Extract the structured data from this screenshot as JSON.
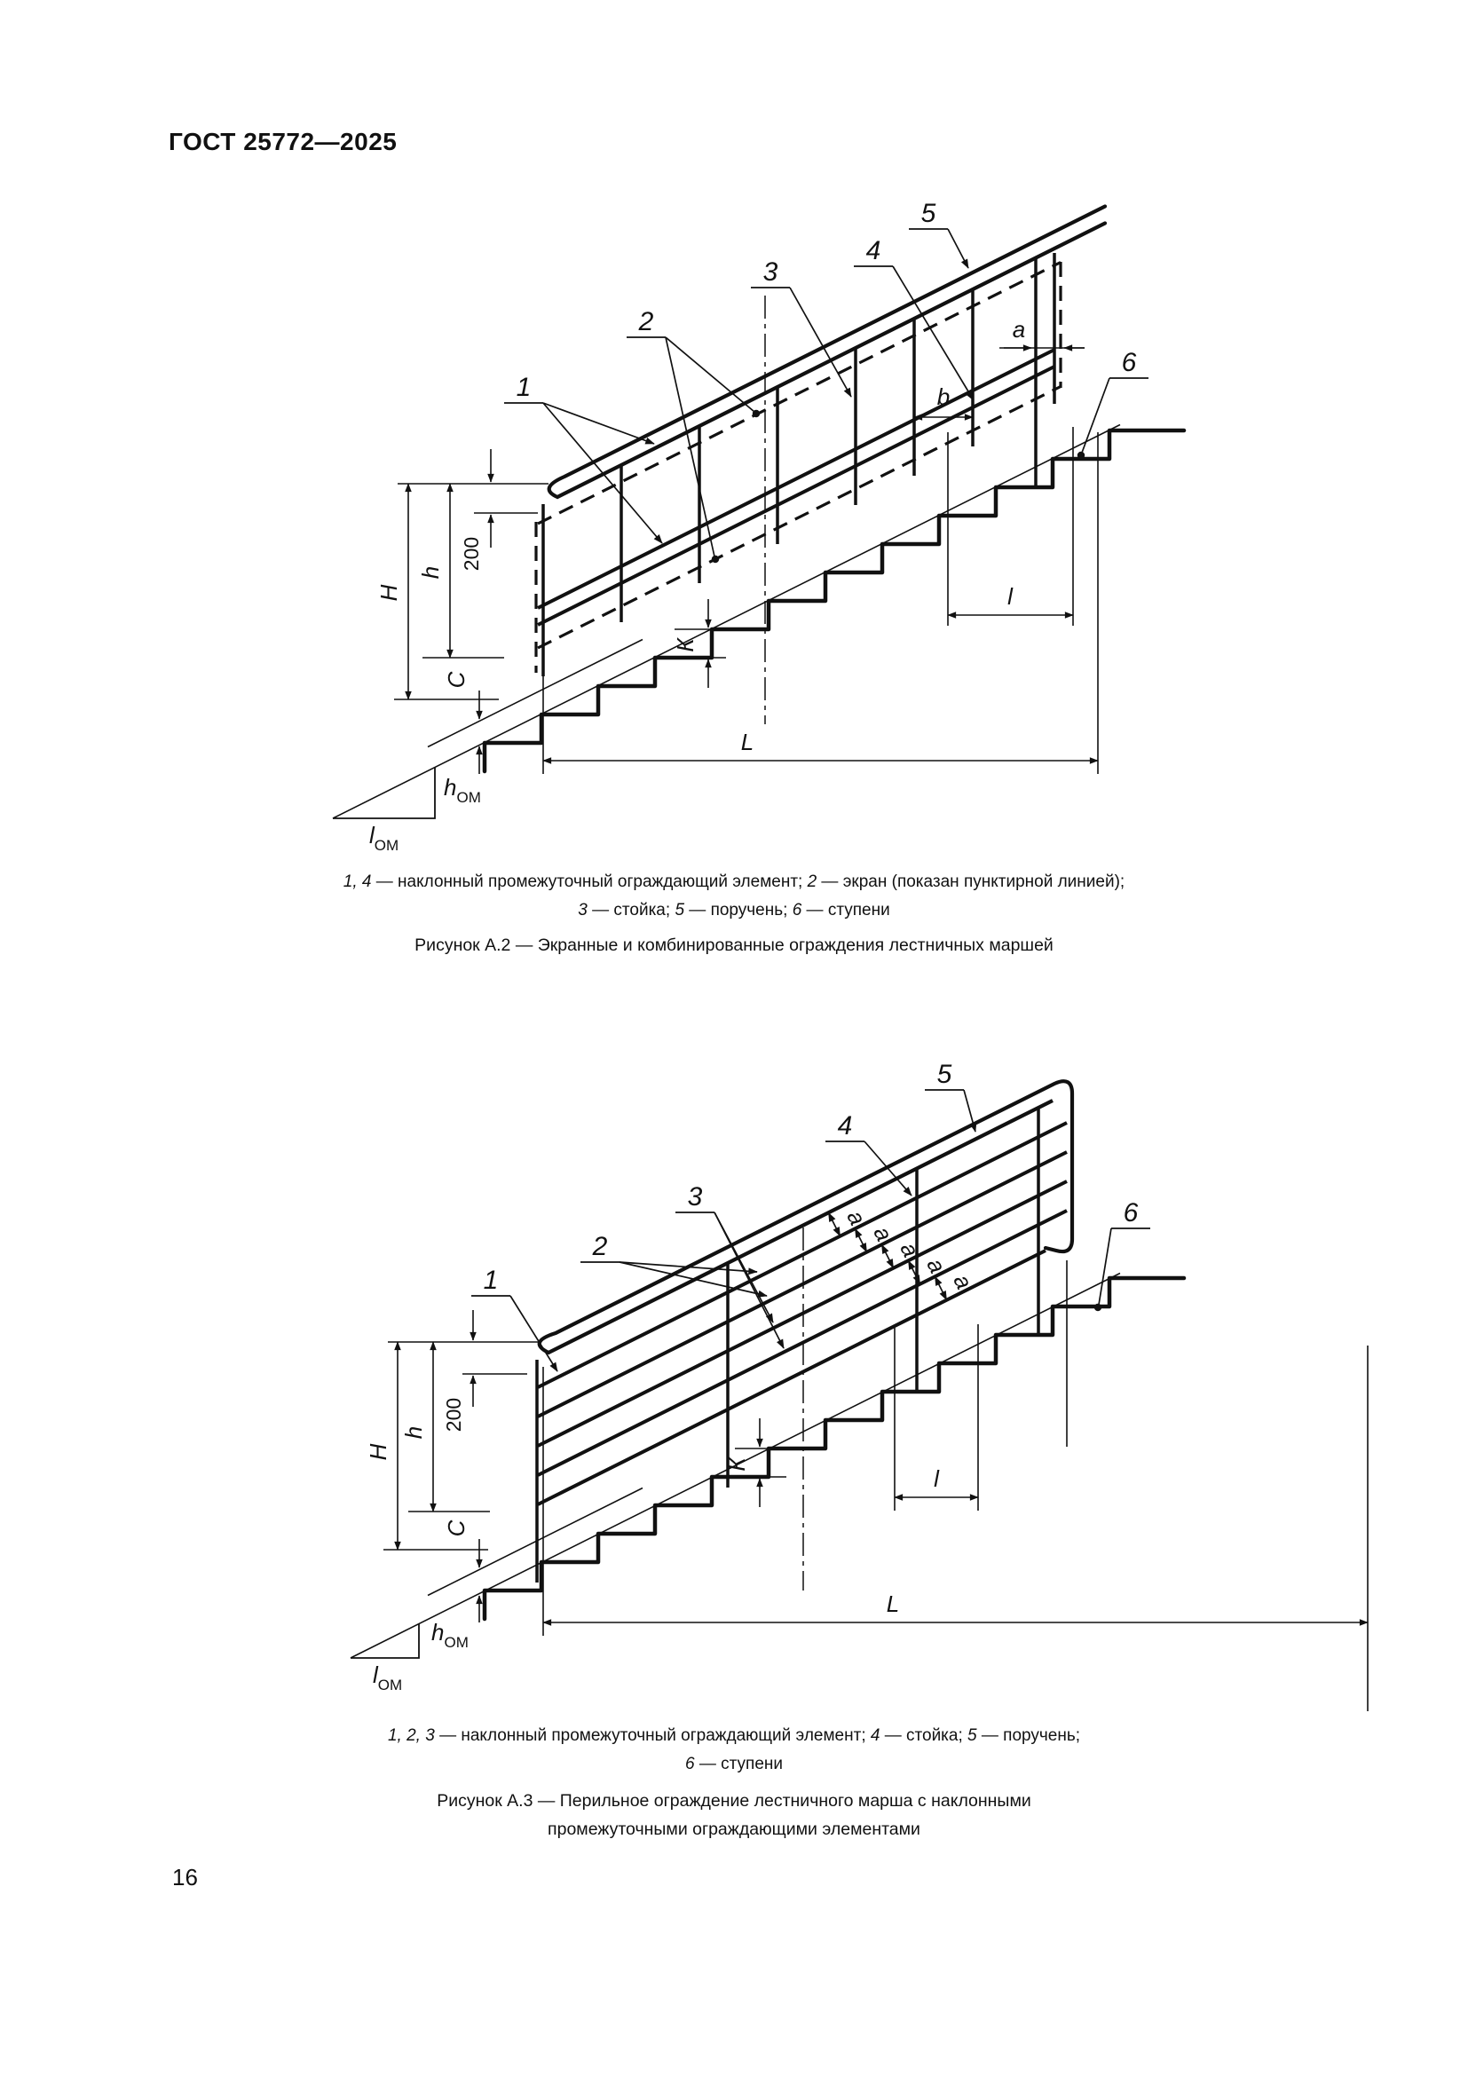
{
  "page": {
    "header": "ГОСТ 25772—2025",
    "page_number": "16"
  },
  "fig_a2": {
    "callouts": [
      "1",
      "2",
      "3",
      "4",
      "5",
      "6"
    ],
    "dims": {
      "H": "H",
      "h": "h",
      "two_hundred": "200",
      "C": "С",
      "K": "К",
      "l": "l",
      "L": "L",
      "a": "a",
      "b": "b",
      "h_om_main": "h",
      "l_om_main": "l",
      "om_sub": "ОМ"
    },
    "caption_line1": [
      {
        "t": "1, 4",
        "i": true
      },
      {
        "t": " — наклонный промежуточный ограждающий элемент; ",
        "i": false
      },
      {
        "t": "2",
        "i": true
      },
      {
        "t": " — экран (показан пунктирной линией);",
        "i": false
      }
    ],
    "caption_line2": [
      {
        "t": "3",
        "i": true
      },
      {
        "t": " — стойка; ",
        "i": false
      },
      {
        "t": "5",
        "i": true
      },
      {
        "t": " — поручень; ",
        "i": false
      },
      {
        "t": "6",
        "i": true
      },
      {
        "t": " — ступени",
        "i": false
      }
    ],
    "title": "Рисунок А.2 — Экранные и комбинированные ограждения лестничных маршей"
  },
  "fig_a3": {
    "callouts": [
      "1",
      "2",
      "3",
      "4",
      "5",
      "6"
    ],
    "dims": {
      "H": "H",
      "h": "h",
      "two_hundred": "200",
      "C": "С",
      "K": "К",
      "l": "l",
      "L": "L",
      "a": "a",
      "h_om_main": "h",
      "l_om_main": "l",
      "om_sub": "ОМ"
    },
    "a_gap_labels": [
      "a",
      "a",
      "a",
      "a",
      "a"
    ],
    "caption_line1": [
      {
        "t": "1, 2, 3",
        "i": true
      },
      {
        "t": " — наклонный промежуточный ограждающий элемент; ",
        "i": false
      },
      {
        "t": "4",
        "i": true
      },
      {
        "t": " — стойка; ",
        "i": false
      },
      {
        "t": "5",
        "i": true
      },
      {
        "t": " — поручень;",
        "i": false
      }
    ],
    "caption_line2": [
      {
        "t": "6",
        "i": true
      },
      {
        "t": " — ступени",
        "i": false
      }
    ],
    "title_line1": "Рисунок А.3 — Перильное ограждение лестничного марша с наклонными",
    "title_line2": "промежуточными ограждающими элементами"
  }
}
